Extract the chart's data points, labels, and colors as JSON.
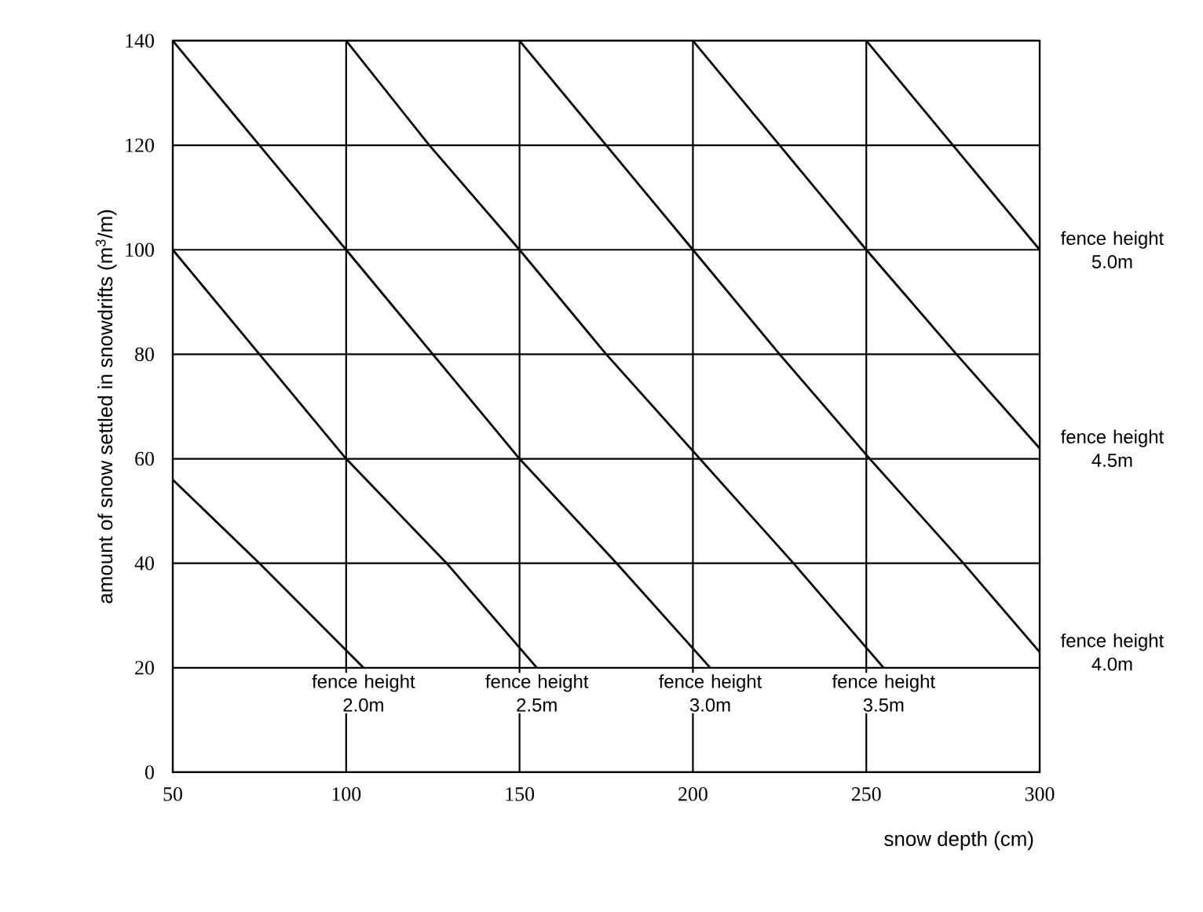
{
  "chart_data": {
    "type": "line",
    "xlabel": "snow depth (cm)",
    "ylabel": "amount of snow settled in snowdrifts (m$^{3}$/m)",
    "xlim": [
      50,
      300
    ],
    "ylim": [
      0,
      140
    ],
    "xticks": [
      50,
      100,
      150,
      200,
      250,
      300
    ],
    "yticks": [
      0,
      20,
      40,
      60,
      80,
      100,
      120,
      140
    ],
    "grid": true,
    "marker": "none",
    "line_style": "solid",
    "series": [
      {
        "name": "fence height 2.0m",
        "color": "#000000",
        "x": [
          50,
          75,
          105
        ],
        "values": [
          56,
          40,
          20
        ]
      },
      {
        "name": "fence height 2.5m",
        "color": "#000000",
        "x": [
          50,
          75,
          100,
          129,
          155
        ],
        "values": [
          100,
          80,
          60,
          40,
          20
        ]
      },
      {
        "name": "fence height 3.0m",
        "color": "#000000",
        "x": [
          50,
          75,
          100,
          125,
          150,
          178,
          205
        ],
        "values": [
          140,
          120,
          100,
          80,
          60,
          40,
          20
        ]
      },
      {
        "name": "fence height 3.5m",
        "color": "#000000",
        "x": [
          100,
          124,
          150,
          175,
          202,
          229,
          255
        ],
        "values": [
          140,
          120,
          100,
          80,
          60,
          40,
          20
        ]
      },
      {
        "name": "fence height 4.0m",
        "color": "#000000",
        "x": [
          150,
          175,
          200,
          225,
          251,
          278,
          300
        ],
        "values": [
          140,
          120,
          100,
          80,
          60,
          40,
          23
        ]
      },
      {
        "name": "fence height 4.5m",
        "color": "#000000",
        "x": [
          200,
          225,
          250,
          276,
          300
        ],
        "values": [
          140,
          120,
          100,
          80,
          62
        ]
      },
      {
        "name": "fence height 5.0m",
        "color": "#000000",
        "x": [
          250,
          275,
          300
        ],
        "values": [
          140,
          120,
          100
        ]
      }
    ]
  }
}
